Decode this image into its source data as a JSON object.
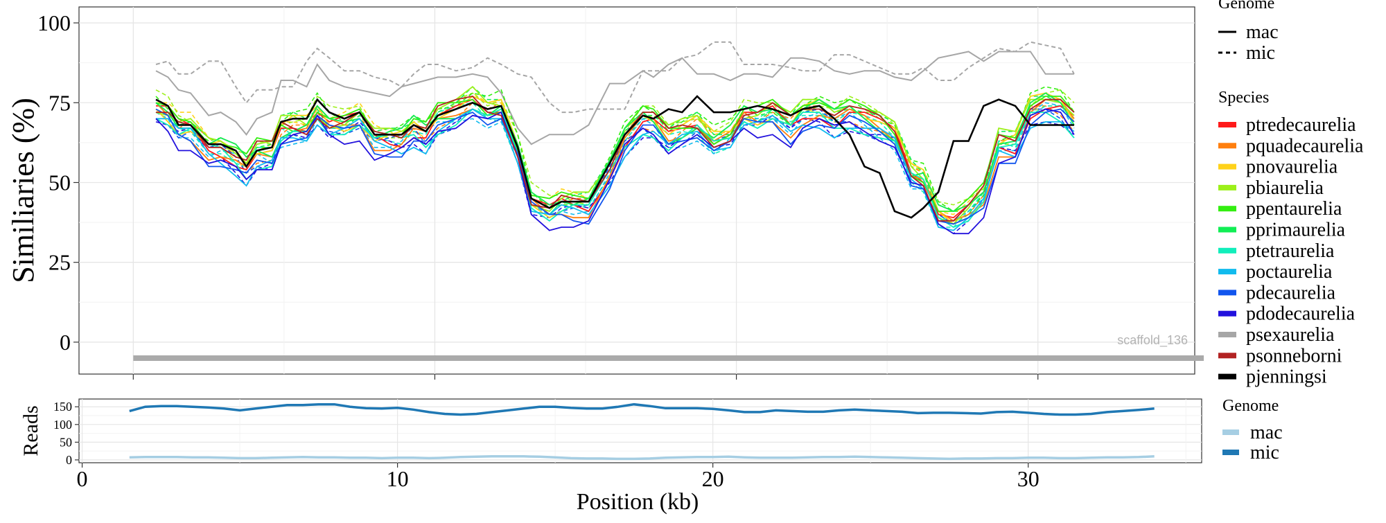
{
  "colors": {
    "ptredecaurelia": "#ff1a1a",
    "pquadecaurelia": "#ff7f0e",
    "pnovaurelia": "#ffd21a",
    "pbiaurelia": "#9cf01a",
    "ppentaurelia": "#33ee11",
    "pprimaurelia": "#11ee55",
    "ptetraurelia": "#11eebb",
    "poctaurelia": "#11bbee",
    "pdecaurelia": "#1155ee",
    "pdodecaurelia": "#2211dd",
    "psexaurelia": "#a6a6a6",
    "psonneborni": "#b22222",
    "pjenningsi": "#000000",
    "reads_mac": "#a6cee3",
    "reads_mic": "#1f78b4",
    "scaffold_bar": "#aaaaaa"
  },
  "chart_data": [
    {
      "type": "line",
      "ylabel": "Similiaries (%)",
      "xlim": [
        -1.8,
        35.2
      ],
      "ylim": [
        -10,
        105
      ],
      "yticks": [
        "100",
        "75",
        "50",
        "25",
        "0"
      ],
      "ytick_values": [
        100,
        75,
        50,
        25,
        0
      ],
      "xgrid": [
        0,
        10,
        20,
        30
      ],
      "grid": true,
      "annotation": "scaffold_136",
      "scaffold_bar": {
        "start": 0,
        "end": 35.5,
        "y": -5
      },
      "legend_genome": {
        "title": "Genome",
        "entries": [
          "mac",
          "mic"
        ],
        "linestyles": [
          "solid",
          "dashed"
        ]
      },
      "legend_species": {
        "title": "Species",
        "entries": [
          "ptredecaurelia",
          "pquadecaurelia",
          "pnovaurelia",
          "pbiaurelia",
          "ppentaurelia",
          "pprimaurelia",
          "ptetraurelia",
          "poctaurelia",
          "pdecaurelia",
          "pdodecaurelia",
          "psexaurelia",
          "psonneborni",
          "pjenningsi"
        ]
      },
      "x": [
        0.75,
        1.15,
        1.5,
        1.9,
        2.5,
        2.9,
        3.4,
        3.75,
        4.1,
        4.6,
        4.9,
        5.3,
        5.75,
        6.1,
        6.5,
        7.0,
        7.5,
        8.0,
        8.5,
        8.9,
        9.3,
        9.7,
        10.1,
        10.7,
        11.25,
        11.75,
        12.2,
        12.75,
        13.2,
        13.8,
        14.2,
        14.6,
        15.1,
        15.8,
        16.3,
        16.9,
        17.25,
        17.75,
        18.2,
        18.7,
        19.25,
        19.8,
        20.25,
        20.7,
        21.2,
        21.8,
        22.2,
        22.75,
        23.25,
        23.75,
        24.25,
        24.75,
        25.25,
        25.8,
        26.2,
        26.7,
        27.2,
        27.7,
        28.2,
        28.7,
        29.25,
        29.75,
        30.25,
        30.75,
        31.2
      ],
      "mac_base": [
        73,
        71,
        67,
        67,
        61,
        61,
        58,
        55,
        59,
        59,
        66,
        67,
        67,
        72,
        68,
        68,
        70,
        64,
        64,
        64,
        67,
        65,
        70,
        72,
        75,
        72,
        73,
        60,
        44,
        41,
        43,
        43,
        43,
        54,
        64,
        70,
        69,
        64,
        66,
        68,
        63,
        65,
        71,
        70,
        72,
        68,
        72,
        73,
        70,
        72,
        70,
        68,
        65,
        53,
        51,
        40,
        38,
        41,
        46,
        62,
        62,
        73,
        75,
        74,
        69
      ],
      "series": [
        {
          "name": "pjenningsi",
          "genome": "mac",
          "values": [
            76,
            74,
            68,
            68,
            62,
            62,
            60,
            55,
            60,
            61,
            69,
            70,
            70,
            76,
            72,
            70,
            72,
            65,
            65,
            65,
            68,
            66,
            71,
            73,
            75,
            73,
            74,
            61,
            45,
            42,
            44,
            44,
            44,
            56,
            65,
            71,
            70,
            73,
            72,
            77,
            72,
            72,
            73,
            74,
            73,
            71,
            73,
            74,
            70,
            65,
            55,
            53,
            41,
            39,
            42,
            47,
            63,
            63,
            74,
            76,
            74,
            68,
            68,
            68,
            68
          ]
        },
        {
          "name": "psexaurelia",
          "genome": "mac",
          "values": [
            85,
            83,
            79,
            78,
            71,
            72,
            69,
            65,
            70,
            72,
            82,
            82,
            80,
            87,
            82,
            80,
            79,
            78,
            77,
            80,
            81,
            82,
            83,
            83,
            84,
            83,
            78,
            67,
            62,
            65,
            65,
            65,
            68,
            81,
            81,
            85,
            83,
            87,
            89,
            84,
            84,
            82,
            84,
            84,
            83,
            89,
            89,
            88,
            85,
            84,
            85,
            85,
            83,
            82,
            85,
            89,
            90,
            91,
            88,
            91,
            91,
            91,
            84,
            84,
            84
          ]
        },
        {
          "name": "psexaurelia",
          "genome": "mic",
          "values": [
            87,
            88,
            84,
            84,
            88,
            88,
            80,
            75,
            79,
            79,
            80,
            80,
            88,
            92,
            89,
            85,
            85,
            83,
            82,
            80,
            84,
            87,
            87,
            85,
            86,
            89,
            87,
            84,
            83,
            75,
            72,
            72,
            73,
            73,
            73,
            85,
            85,
            85,
            89,
            90,
            94,
            94,
            87,
            87,
            87,
            86,
            85,
            85,
            90,
            90,
            88,
            86,
            84,
            84,
            86,
            82,
            82,
            86,
            89,
            92,
            91,
            94,
            93,
            92,
            84
          ]
        }
      ]
    },
    {
      "type": "line",
      "ylabel": "Reads",
      "xlabel": "Position (kb)",
      "xticks": [
        "0",
        "10",
        "20",
        "30"
      ],
      "xtick_values": [
        0,
        10,
        20,
        30
      ],
      "yticks": [
        "150",
        "100",
        "50",
        "0"
      ],
      "ytick_values": [
        150,
        100,
        50,
        0
      ],
      "xlim": [
        -0.1,
        35.5
      ],
      "ylim": [
        -8,
        172
      ],
      "grid": true,
      "legend": {
        "title": "Genome",
        "entries": [
          "mac",
          "mic"
        ]
      },
      "x": [
        1.5,
        2.0,
        2.5,
        3.0,
        3.5,
        4.0,
        4.5,
        5.0,
        5.5,
        6.0,
        6.5,
        7.0,
        7.5,
        8.0,
        8.5,
        9.0,
        9.5,
        10.0,
        10.5,
        11.0,
        11.5,
        12.0,
        12.5,
        13.0,
        13.5,
        14.0,
        14.5,
        15.0,
        15.5,
        16.0,
        16.5,
        17.0,
        17.5,
        18.0,
        18.5,
        19.0,
        19.5,
        20.0,
        20.5,
        21.0,
        21.5,
        22.0,
        22.5,
        23.0,
        23.5,
        24.0,
        24.5,
        25.0,
        25.5,
        26.0,
        26.5,
        27.0,
        27.5,
        28.0,
        28.5,
        29.0,
        29.5,
        30.0,
        30.5,
        31.0,
        31.5,
        32.0,
        32.5,
        33.0,
        33.5,
        34.0
      ],
      "series": [
        {
          "name": "mac",
          "values": [
            7,
            8,
            8,
            8,
            7,
            7,
            6,
            5,
            5,
            6,
            7,
            8,
            7,
            7,
            6,
            6,
            5,
            6,
            6,
            5,
            6,
            8,
            9,
            10,
            10,
            10,
            9,
            7,
            5,
            4,
            4,
            3,
            3,
            4,
            6,
            7,
            8,
            8,
            9,
            7,
            6,
            6,
            6,
            7,
            8,
            8,
            9,
            8,
            7,
            6,
            5,
            4,
            3,
            4,
            4,
            5,
            5,
            6,
            6,
            5,
            5,
            6,
            7,
            7,
            8,
            10
          ]
        },
        {
          "name": "mic",
          "values": [
            138,
            150,
            152,
            152,
            150,
            148,
            145,
            140,
            145,
            150,
            155,
            155,
            157,
            157,
            150,
            146,
            145,
            147,
            142,
            135,
            130,
            128,
            130,
            135,
            140,
            145,
            150,
            150,
            147,
            145,
            145,
            150,
            157,
            152,
            146,
            146,
            146,
            144,
            140,
            135,
            135,
            140,
            138,
            136,
            136,
            140,
            142,
            140,
            138,
            136,
            132,
            133,
            133,
            132,
            131,
            135,
            136,
            133,
            130,
            128,
            128,
            130,
            135,
            138,
            141,
            145
          ]
        }
      ]
    }
  ]
}
